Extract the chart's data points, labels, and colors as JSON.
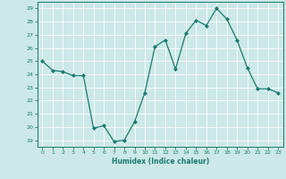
{
  "x": [
    0,
    1,
    2,
    3,
    4,
    5,
    6,
    7,
    8,
    9,
    10,
    11,
    12,
    13,
    14,
    15,
    16,
    17,
    18,
    19,
    20,
    21,
    22,
    23
  ],
  "y": [
    25,
    24.3,
    24.2,
    23.9,
    23.9,
    19.9,
    20.1,
    18.9,
    19.0,
    20.4,
    22.6,
    26.1,
    26.6,
    24.4,
    27.1,
    28.1,
    27.7,
    29.0,
    28.2,
    26.6,
    24.5,
    22.9,
    22.9,
    22.6
  ],
  "title": "",
  "xlabel": "Humidex (Indice chaleur)",
  "ylabel": "",
  "xlim": [
    -0.5,
    23.5
  ],
  "ylim": [
    18.5,
    29.5
  ],
  "yticks": [
    19,
    20,
    21,
    22,
    23,
    24,
    25,
    26,
    27,
    28,
    29
  ],
  "xticks": [
    0,
    1,
    2,
    3,
    4,
    5,
    6,
    7,
    8,
    9,
    10,
    11,
    12,
    13,
    14,
    15,
    16,
    17,
    18,
    19,
    20,
    21,
    22,
    23
  ],
  "line_color": "#1a7a6e",
  "marker_color": "#1a7a6e",
  "bg_color": "#cce8e8",
  "grid_color": "#ffffff",
  "axes_color": "#1a7a6e",
  "tick_color": "#1a7a6e",
  "label_color": "#1a7a6e"
}
